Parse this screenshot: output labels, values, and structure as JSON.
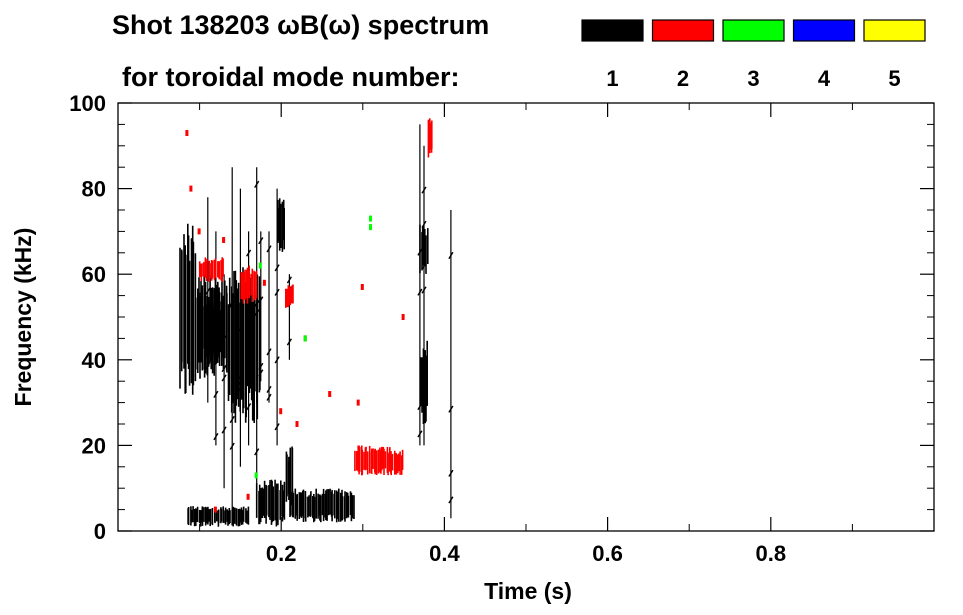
{
  "chart_data": {
    "type": "scatter",
    "title_line1": "Shot 138203 ωB(ω) spectrum",
    "title_line2": "for toroidal mode number:",
    "xlabel": "Time (s)",
    "ylabel": "Frequency (kHz)",
    "xlim": [
      0.0,
      1.0
    ],
    "ylim": [
      0,
      100
    ],
    "x_ticks": [
      {
        "value": 0.2,
        "label": "0.2"
      },
      {
        "value": 0.4,
        "label": "0.4"
      },
      {
        "value": 0.6,
        "label": "0.6"
      },
      {
        "value": 0.8,
        "label": "0.8"
      }
    ],
    "y_ticks": [
      {
        "value": 0,
        "label": "0"
      },
      {
        "value": 20,
        "label": "20"
      },
      {
        "value": 40,
        "label": "40"
      },
      {
        "value": 60,
        "label": "60"
      },
      {
        "value": 80,
        "label": "80"
      },
      {
        "value": 100,
        "label": "100"
      }
    ],
    "grid": false,
    "legend_position": "top-right",
    "legend": [
      {
        "label": "1",
        "color": "#000000"
      },
      {
        "label": "2",
        "color": "#ff0000"
      },
      {
        "label": "3",
        "color": "#00ff00"
      },
      {
        "label": "4",
        "color": "#0000ff"
      },
      {
        "label": "5",
        "color": "#ffff00"
      }
    ],
    "series": [
      {
        "mode": "1",
        "color": "#000000",
        "regions": [
          {
            "t": [
              0.075,
              0.095
            ],
            "f": [
              30,
              73
            ]
          },
          {
            "t": [
              0.095,
              0.135
            ],
            "f": [
              35,
              60
            ]
          },
          {
            "t": [
              0.1,
              0.13
            ],
            "f": [
              40,
              55
            ]
          },
          {
            "t": [
              0.135,
              0.175
            ],
            "f": [
              25,
              62
            ]
          },
          {
            "t": [
              0.195,
              0.205
            ],
            "f": [
              65,
              78
            ]
          },
          {
            "t": [
              0.21,
              0.29
            ],
            "f": [
              2,
              10
            ]
          },
          {
            "t": [
              0.205,
              0.215
            ],
            "f": [
              5,
              20
            ]
          },
          {
            "t": [
              0.17,
              0.205
            ],
            "f": [
              1,
              12
            ]
          },
          {
            "t": [
              0.085,
              0.16
            ],
            "f": [
              1,
              6
            ]
          },
          {
            "t": [
              0.37,
              0.38
            ],
            "f": [
              60,
              72
            ]
          },
          {
            "t": [
              0.37,
              0.38
            ],
            "f": [
              25,
              45
            ]
          }
        ],
        "lines": [
          {
            "t": 0.11,
            "f": [
              30,
              78
            ]
          },
          {
            "t": 0.12,
            "f": [
              20,
              70
            ]
          },
          {
            "t": 0.13,
            "f": [
              10,
              60
            ]
          },
          {
            "t": 0.14,
            "f": [
              5,
              85
            ]
          },
          {
            "t": 0.15,
            "f": [
              15,
              80
            ]
          },
          {
            "t": 0.16,
            "f": [
              20,
              70
            ]
          },
          {
            "t": 0.17,
            "f": [
              10,
              85
            ]
          },
          {
            "t": 0.175,
            "f": [
              35,
              70
            ]
          },
          {
            "t": 0.185,
            "f": [
              30,
              70
            ]
          },
          {
            "t": 0.195,
            "f": [
              20,
              80
            ]
          },
          {
            "t": 0.21,
            "f": [
              40,
              60
            ]
          },
          {
            "t": 0.37,
            "f": [
              20,
              95
            ]
          },
          {
            "t": 0.375,
            "f": [
              20,
              90
            ]
          },
          {
            "t": 0.408,
            "f": [
              3,
              75
            ]
          }
        ]
      },
      {
        "mode": "2",
        "color": "#ff0000",
        "regions": [
          {
            "t": [
              0.29,
              0.335
            ],
            "f": [
              13,
              20
            ]
          },
          {
            "t": [
              0.33,
              0.35
            ],
            "f": [
              13,
              19
            ]
          },
          {
            "t": [
              0.1,
              0.13
            ],
            "f": [
              58,
              64
            ]
          },
          {
            "t": [
              0.15,
              0.17
            ],
            "f": [
              53,
              62
            ]
          },
          {
            "t": [
              0.205,
              0.215
            ],
            "f": [
              52,
              58
            ]
          },
          {
            "t": [
              0.38,
              0.385
            ],
            "f": [
              87,
              97
            ]
          }
        ],
        "points": [
          {
            "t": 0.085,
            "f": 93
          },
          {
            "t": 0.09,
            "f": 80
          },
          {
            "t": 0.1,
            "f": 70
          },
          {
            "t": 0.13,
            "f": 68
          },
          {
            "t": 0.18,
            "f": 58
          },
          {
            "t": 0.23,
            "f": 45
          },
          {
            "t": 0.26,
            "f": 32
          },
          {
            "t": 0.3,
            "f": 57
          },
          {
            "t": 0.295,
            "f": 30
          },
          {
            "t": 0.16,
            "f": 8
          },
          {
            "t": 0.12,
            "f": 5
          },
          {
            "t": 0.35,
            "f": 50
          },
          {
            "t": 0.2,
            "f": 28
          },
          {
            "t": 0.22,
            "f": 25
          }
        ]
      },
      {
        "mode": "3",
        "color": "#00ff00",
        "points": [
          {
            "t": 0.31,
            "f": 71
          },
          {
            "t": 0.31,
            "f": 73
          },
          {
            "t": 0.175,
            "f": 62
          },
          {
            "t": 0.17,
            "f": 13
          },
          {
            "t": 0.23,
            "f": 45
          }
        ]
      },
      {
        "mode": "4",
        "color": "#0000ff",
        "points": []
      },
      {
        "mode": "5",
        "color": "#ffff00",
        "points": []
      }
    ]
  }
}
